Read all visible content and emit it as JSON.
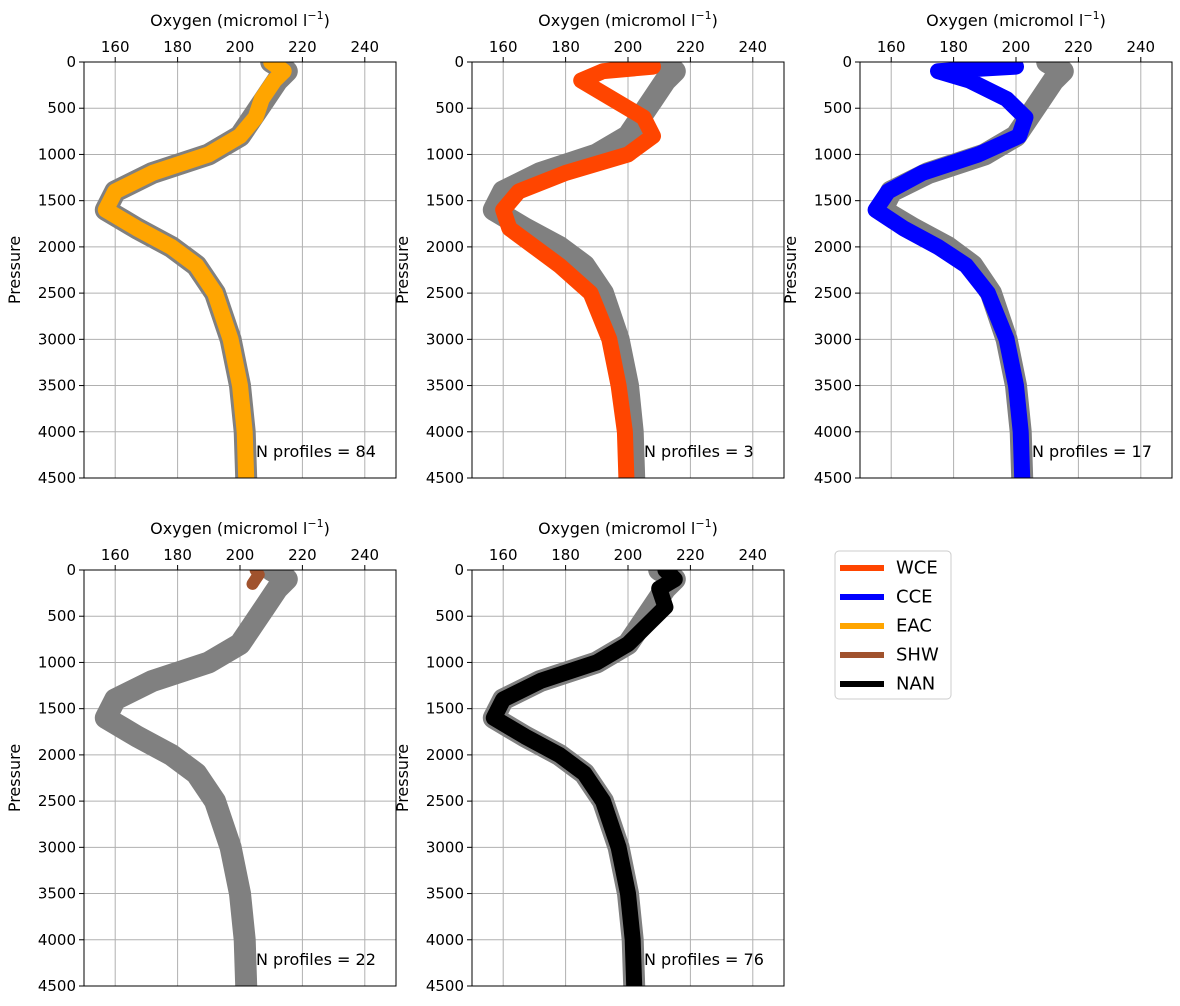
{
  "chart_data": [
    {
      "type": "line",
      "xlabel": "Oxygen (micromol l",
      "xlabel_sup": "−1",
      "xlabel_end": ")",
      "ylabel": "Pressure",
      "xlim": [
        150,
        250
      ],
      "ylim": [
        4500,
        0
      ],
      "x_ticks": [
        160,
        180,
        200,
        220,
        240
      ],
      "y_ticks": [
        0,
        500,
        1000,
        1500,
        2000,
        2500,
        3000,
        3500,
        4000,
        4500
      ],
      "grid": true,
      "background_series": {
        "color": "#808080",
        "pressure": [
          0,
          100,
          200,
          400,
          600,
          800,
          1000,
          1200,
          1400,
          1600,
          1800,
          2000,
          2200,
          2500,
          3000,
          3500,
          4000,
          4500
        ],
        "oxygen": [
          210,
          215,
          212,
          208,
          204,
          200,
          190,
          172,
          160,
          157,
          167,
          178,
          186,
          192,
          197,
          200,
          201.5,
          202
        ]
      },
      "highlight": {
        "name": "EAC",
        "color": "#ffa500",
        "pressure": [
          0,
          100,
          200,
          400,
          600,
          800,
          1000,
          1200,
          1400,
          1600,
          1800,
          2000,
          2200,
          2500,
          3000,
          3500,
          4000,
          4500
        ],
        "oxygen": [
          210,
          214,
          211,
          207,
          205,
          200,
          190,
          172,
          160,
          157,
          167,
          178,
          186,
          192,
          197,
          200,
          201.5,
          202
        ]
      },
      "annotation": "N profiles = 84"
    },
    {
      "type": "line",
      "xlabel": "Oxygen (micromol l",
      "xlabel_sup": "−1",
      "xlabel_end": ")",
      "ylabel": "Pressure",
      "xlim": [
        150,
        250
      ],
      "ylim": [
        4500,
        0
      ],
      "x_ticks": [
        160,
        180,
        200,
        220,
        240
      ],
      "y_ticks": [
        0,
        500,
        1000,
        1500,
        2000,
        2500,
        3000,
        3500,
        4000,
        4500
      ],
      "grid": true,
      "background_series": {
        "color": "#808080",
        "pressure": [
          0,
          100,
          200,
          400,
          600,
          800,
          1000,
          1200,
          1400,
          1600,
          1800,
          2000,
          2200,
          2500,
          3000,
          3500,
          4000,
          4500
        ],
        "oxygen": [
          210,
          215,
          212,
          208,
          204,
          200,
          190,
          172,
          160,
          157,
          167,
          178,
          186,
          192,
          197,
          200,
          201.5,
          202
        ]
      },
      "highlight": {
        "name": "WCE",
        "color": "#ff4500",
        "pressure": [
          50,
          100,
          200,
          400,
          600,
          800,
          1000,
          1200,
          1400,
          1600,
          1800,
          2000,
          2200,
          2500,
          3000,
          3500,
          4000,
          4500
        ],
        "oxygen": [
          208,
          192,
          185,
          195,
          205,
          208,
          200,
          180,
          165,
          160,
          162,
          170,
          178,
          188,
          194,
          197,
          199,
          199.5
        ]
      },
      "annotation": "N profiles = 3"
    },
    {
      "type": "line",
      "xlabel": "Oxygen (micromol l",
      "xlabel_sup": "−1",
      "xlabel_end": ")",
      "ylabel": "Pressure",
      "xlim": [
        150,
        250
      ],
      "ylim": [
        4500,
        0
      ],
      "x_ticks": [
        160,
        180,
        200,
        220,
        240
      ],
      "y_ticks": [
        0,
        500,
        1000,
        1500,
        2000,
        2500,
        3000,
        3500,
        4000,
        4500
      ],
      "grid": true,
      "background_series": {
        "color": "#808080",
        "pressure": [
          0,
          100,
          200,
          400,
          600,
          800,
          1000,
          1200,
          1400,
          1600,
          1800,
          2000,
          2200,
          2500,
          3000,
          3500,
          4000,
          4500
        ],
        "oxygen": [
          210,
          215,
          212,
          208,
          204,
          200,
          190,
          172,
          160,
          157,
          167,
          178,
          186,
          192,
          197,
          200,
          201.5,
          202
        ]
      },
      "highlight": {
        "name": "CCE",
        "color": "#0000ff",
        "pressure": [
          50,
          100,
          200,
          400,
          600,
          800,
          1000,
          1200,
          1400,
          1600,
          1800,
          2000,
          2200,
          2500,
          3000,
          3500,
          4000,
          4500
        ],
        "oxygen": [
          200,
          175,
          185,
          197,
          203,
          201,
          188,
          170,
          159,
          155,
          164,
          175,
          184,
          191,
          197,
          200,
          201.5,
          202
        ]
      },
      "annotation": "N profiles = 17"
    },
    {
      "type": "line",
      "xlabel": "Oxygen (micromol l",
      "xlabel_sup": "−1",
      "xlabel_end": ")",
      "ylabel": "Pressure",
      "xlim": [
        150,
        250
      ],
      "ylim": [
        4500,
        0
      ],
      "x_ticks": [
        160,
        180,
        200,
        220,
        240
      ],
      "y_ticks": [
        0,
        500,
        1000,
        1500,
        2000,
        2500,
        3000,
        3500,
        4000,
        4500
      ],
      "grid": true,
      "background_series": {
        "color": "#808080",
        "pressure": [
          0,
          100,
          200,
          400,
          600,
          800,
          1000,
          1200,
          1400,
          1600,
          1800,
          2000,
          2200,
          2500,
          3000,
          3500,
          4000,
          4500
        ],
        "oxygen": [
          210,
          215,
          212,
          208,
          204,
          200,
          190,
          172,
          160,
          157,
          167,
          178,
          186,
          192,
          197,
          200,
          201.5,
          202
        ]
      },
      "highlight": {
        "name": "SHW",
        "color": "#a0522d",
        "pressure": [
          0,
          50,
          100,
          150
        ],
        "oxygen": [
          205,
          206,
          205,
          204
        ]
      },
      "annotation": "N profiles = 22"
    },
    {
      "type": "line",
      "xlabel": "Oxygen (micromol l",
      "xlabel_sup": "−1",
      "xlabel_end": ")",
      "ylabel": "Pressure",
      "xlim": [
        150,
        250
      ],
      "ylim": [
        4500,
        0
      ],
      "x_ticks": [
        160,
        180,
        200,
        220,
        240
      ],
      "y_ticks": [
        0,
        500,
        1000,
        1500,
        2000,
        2500,
        3000,
        3500,
        4000,
        4500
      ],
      "grid": true,
      "background_series": {
        "color": "#808080",
        "pressure": [
          0,
          100,
          200,
          400,
          600,
          800,
          1000,
          1200,
          1400,
          1600,
          1800,
          2000,
          2200,
          2500,
          3000,
          3500,
          4000,
          4500
        ],
        "oxygen": [
          210,
          215,
          212,
          208,
          204,
          200,
          190,
          172,
          160,
          157,
          167,
          178,
          186,
          192,
          197,
          200,
          201.5,
          202
        ]
      },
      "highlight": {
        "name": "NAN",
        "color": "#000000",
        "pressure": [
          0,
          100,
          200,
          400,
          600,
          800,
          1000,
          1200,
          1400,
          1600,
          1800,
          2000,
          2200,
          2500,
          3000,
          3500,
          4000,
          4500
        ],
        "oxygen": [
          212,
          215,
          210,
          212,
          206,
          200,
          190,
          172,
          160,
          157,
          167,
          178,
          186,
          192,
          197,
          200,
          201.5,
          202
        ]
      },
      "annotation": "N profiles = 76"
    }
  ],
  "legend": {
    "placement": "right",
    "items": [
      {
        "label": "WCE",
        "color": "#ff4500"
      },
      {
        "label": "CCE",
        "color": "#0000ff"
      },
      {
        "label": "EAC",
        "color": "#ffa500"
      },
      {
        "label": "SHW",
        "color": "#a0522d"
      },
      {
        "label": "NAN",
        "color": "#000000"
      }
    ]
  }
}
